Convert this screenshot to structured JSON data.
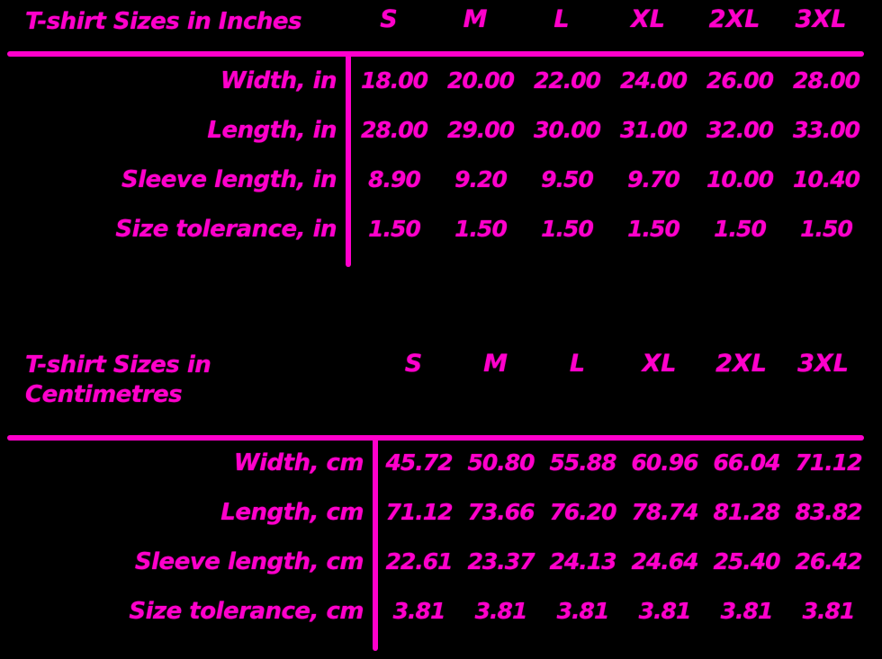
{
  "page": {
    "background_color": "#000000",
    "accent_color": "#ff00cb"
  },
  "sizes": [
    "S",
    "M",
    "L",
    "XL",
    "2XL",
    "3XL"
  ],
  "tables": [
    {
      "title": "T-shirt Sizes in Inches",
      "rows": [
        {
          "label": "Width, in",
          "values": [
            "18.00",
            "20.00",
            "22.00",
            "24.00",
            "26.00",
            "28.00"
          ]
        },
        {
          "label": "Length, in",
          "values": [
            "28.00",
            "29.00",
            "30.00",
            "31.00",
            "32.00",
            "33.00"
          ]
        },
        {
          "label": "Sleeve length, in",
          "values": [
            "8.90",
            "9.20",
            "9.50",
            "9.70",
            "10.00",
            "10.40"
          ]
        },
        {
          "label": "Size tolerance, in",
          "values": [
            "1.50",
            "1.50",
            "1.50",
            "1.50",
            "1.50",
            "1.50"
          ]
        }
      ]
    },
    {
      "title": "T-shirt Sizes in Centimetres",
      "rows": [
        {
          "label": "Width, cm",
          "values": [
            "45.72",
            "50.80",
            "55.88",
            "60.96",
            "66.04",
            "71.12"
          ]
        },
        {
          "label": "Length, cm",
          "values": [
            "71.12",
            "73.66",
            "76.20",
            "78.74",
            "81.28",
            "83.82"
          ]
        },
        {
          "label": "Sleeve length, cm",
          "values": [
            "22.61",
            "23.37",
            "24.13",
            "24.64",
            "25.40",
            "26.42"
          ]
        },
        {
          "label": "Size tolerance, cm",
          "values": [
            "3.81",
            "3.81",
            "3.81",
            "3.81",
            "3.81",
            "3.81"
          ]
        }
      ]
    }
  ],
  "chart_data": [
    {
      "type": "table",
      "title": "T-shirt Sizes in Inches",
      "columns": [
        "S",
        "M",
        "L",
        "XL",
        "2XL",
        "3XL"
      ],
      "rows": [
        {
          "label": "Width, in",
          "values": [
            18.0,
            20.0,
            22.0,
            24.0,
            26.0,
            28.0
          ]
        },
        {
          "label": "Length, in",
          "values": [
            28.0,
            29.0,
            30.0,
            31.0,
            32.0,
            33.0
          ]
        },
        {
          "label": "Sleeve length, in",
          "values": [
            8.9,
            9.2,
            9.5,
            9.7,
            10.0,
            10.4
          ]
        },
        {
          "label": "Size tolerance, in",
          "values": [
            1.5,
            1.5,
            1.5,
            1.5,
            1.5,
            1.5
          ]
        }
      ]
    },
    {
      "type": "table",
      "title": "T-shirt Sizes in Centimetres",
      "columns": [
        "S",
        "M",
        "L",
        "XL",
        "2XL",
        "3XL"
      ],
      "rows": [
        {
          "label": "Width, cm",
          "values": [
            45.72,
            50.8,
            55.88,
            60.96,
            66.04,
            71.12
          ]
        },
        {
          "label": "Length, cm",
          "values": [
            71.12,
            73.66,
            76.2,
            78.74,
            81.28,
            83.82
          ]
        },
        {
          "label": "Sleeve length, cm",
          "values": [
            22.61,
            23.37,
            24.13,
            24.64,
            25.4,
            26.42
          ]
        },
        {
          "label": "Size tolerance, cm",
          "values": [
            3.81,
            3.81,
            3.81,
            3.81,
            3.81,
            3.81
          ]
        }
      ]
    }
  ]
}
